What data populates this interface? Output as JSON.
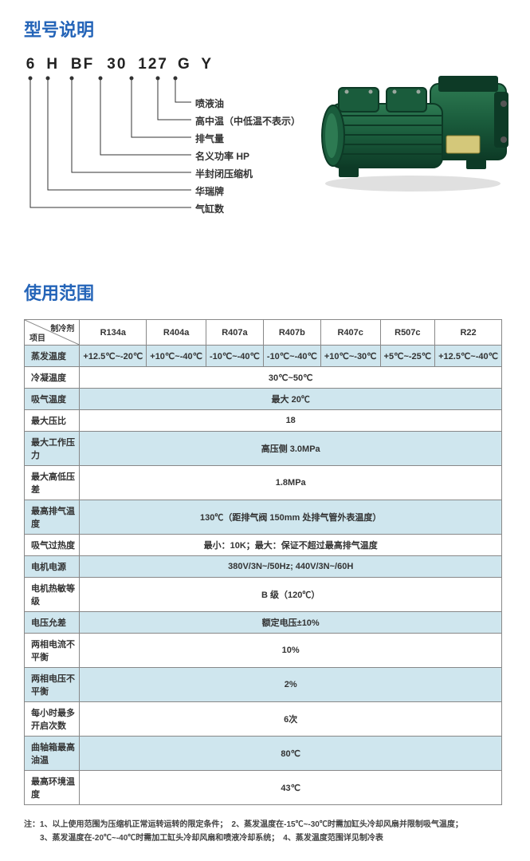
{
  "section1_title": "型号说明",
  "model_parts": [
    "6",
    "H",
    "BF",
    "30",
    "127",
    "G",
    "Y"
  ],
  "diagram_labels": [
    "喷液油",
    "高中温（中低温不表示）",
    "排气量",
    "名义功率 HP",
    "半封闭压缩机",
    "华瑞牌",
    "气缸数"
  ],
  "compressor": {
    "body_color": "#1a5c3c",
    "dark_color": "#0d3a26",
    "highlight": "#2d7a52",
    "metal": "#9aa79e"
  },
  "section2_title": "使用范围",
  "table": {
    "header_diag_top": "制冷剂",
    "header_diag_bot": "项目",
    "refrigerants": [
      "R134a",
      "R404a",
      "R407a",
      "R407b",
      "R407c",
      "R507c",
      "R22"
    ],
    "rows": [
      {
        "label": "蒸发温度",
        "cells": [
          "+12.5℃~-20℃",
          "+10℃~-40℃",
          "-10℃~-40℃",
          "-10℃~-40℃",
          "+10℃~-30℃",
          "+5℃~-25℃",
          "+12.5℃~-40℃"
        ],
        "alt": true
      },
      {
        "label": "冷凝温度",
        "merged": "30℃~50℃",
        "alt": false
      },
      {
        "label": "吸气温度",
        "merged": "最大 20℃",
        "alt": true
      },
      {
        "label": "最大压比",
        "merged": "18",
        "alt": false
      },
      {
        "label": "最大工作压力",
        "merged": "高压侧 3.0MPa",
        "alt": true
      },
      {
        "label": "最大高低压差",
        "merged": "1.8MPa",
        "alt": false
      },
      {
        "label": "最高排气温度",
        "merged": "130℃（距排气阀 150mm 处排气管外表温度）",
        "alt": true
      },
      {
        "label": "吸气过热度",
        "merged": "最小：10K；最大：保证不超过最高排气温度",
        "alt": false
      },
      {
        "label": "电机电源",
        "merged": "380V/3N~/50Hz; 440V/3N~/60H",
        "alt": true
      },
      {
        "label": "电机热敏等级",
        "merged": "B 级（120℃）",
        "alt": false
      },
      {
        "label": "电压允差",
        "merged": "额定电压±10%",
        "alt": true
      },
      {
        "label": "两相电流不平衡",
        "merged": "10%",
        "alt": false
      },
      {
        "label": "两相电压不平衡",
        "merged": "2%",
        "alt": true
      },
      {
        "label": "每小时最多开启次数",
        "merged": "6次",
        "alt": false
      },
      {
        "label": "曲轴箱最高油温",
        "merged": "80℃",
        "alt": true
      },
      {
        "label": "最高环境温度",
        "merged": "43℃",
        "alt": false
      }
    ]
  },
  "notes_line1": "注：1、以上使用范围为压缩机正常运转运转的限定条件；　2、蒸发温度在-15℃~-30℃时需加缸头冷却风扇并限制吸气温度；",
  "notes_line2": "　　3、蒸发温度在-20℃~-40℃时需加工缸头冷却风扇和喷液冷却系统；　4、蒸发温度范围详见制冷表"
}
